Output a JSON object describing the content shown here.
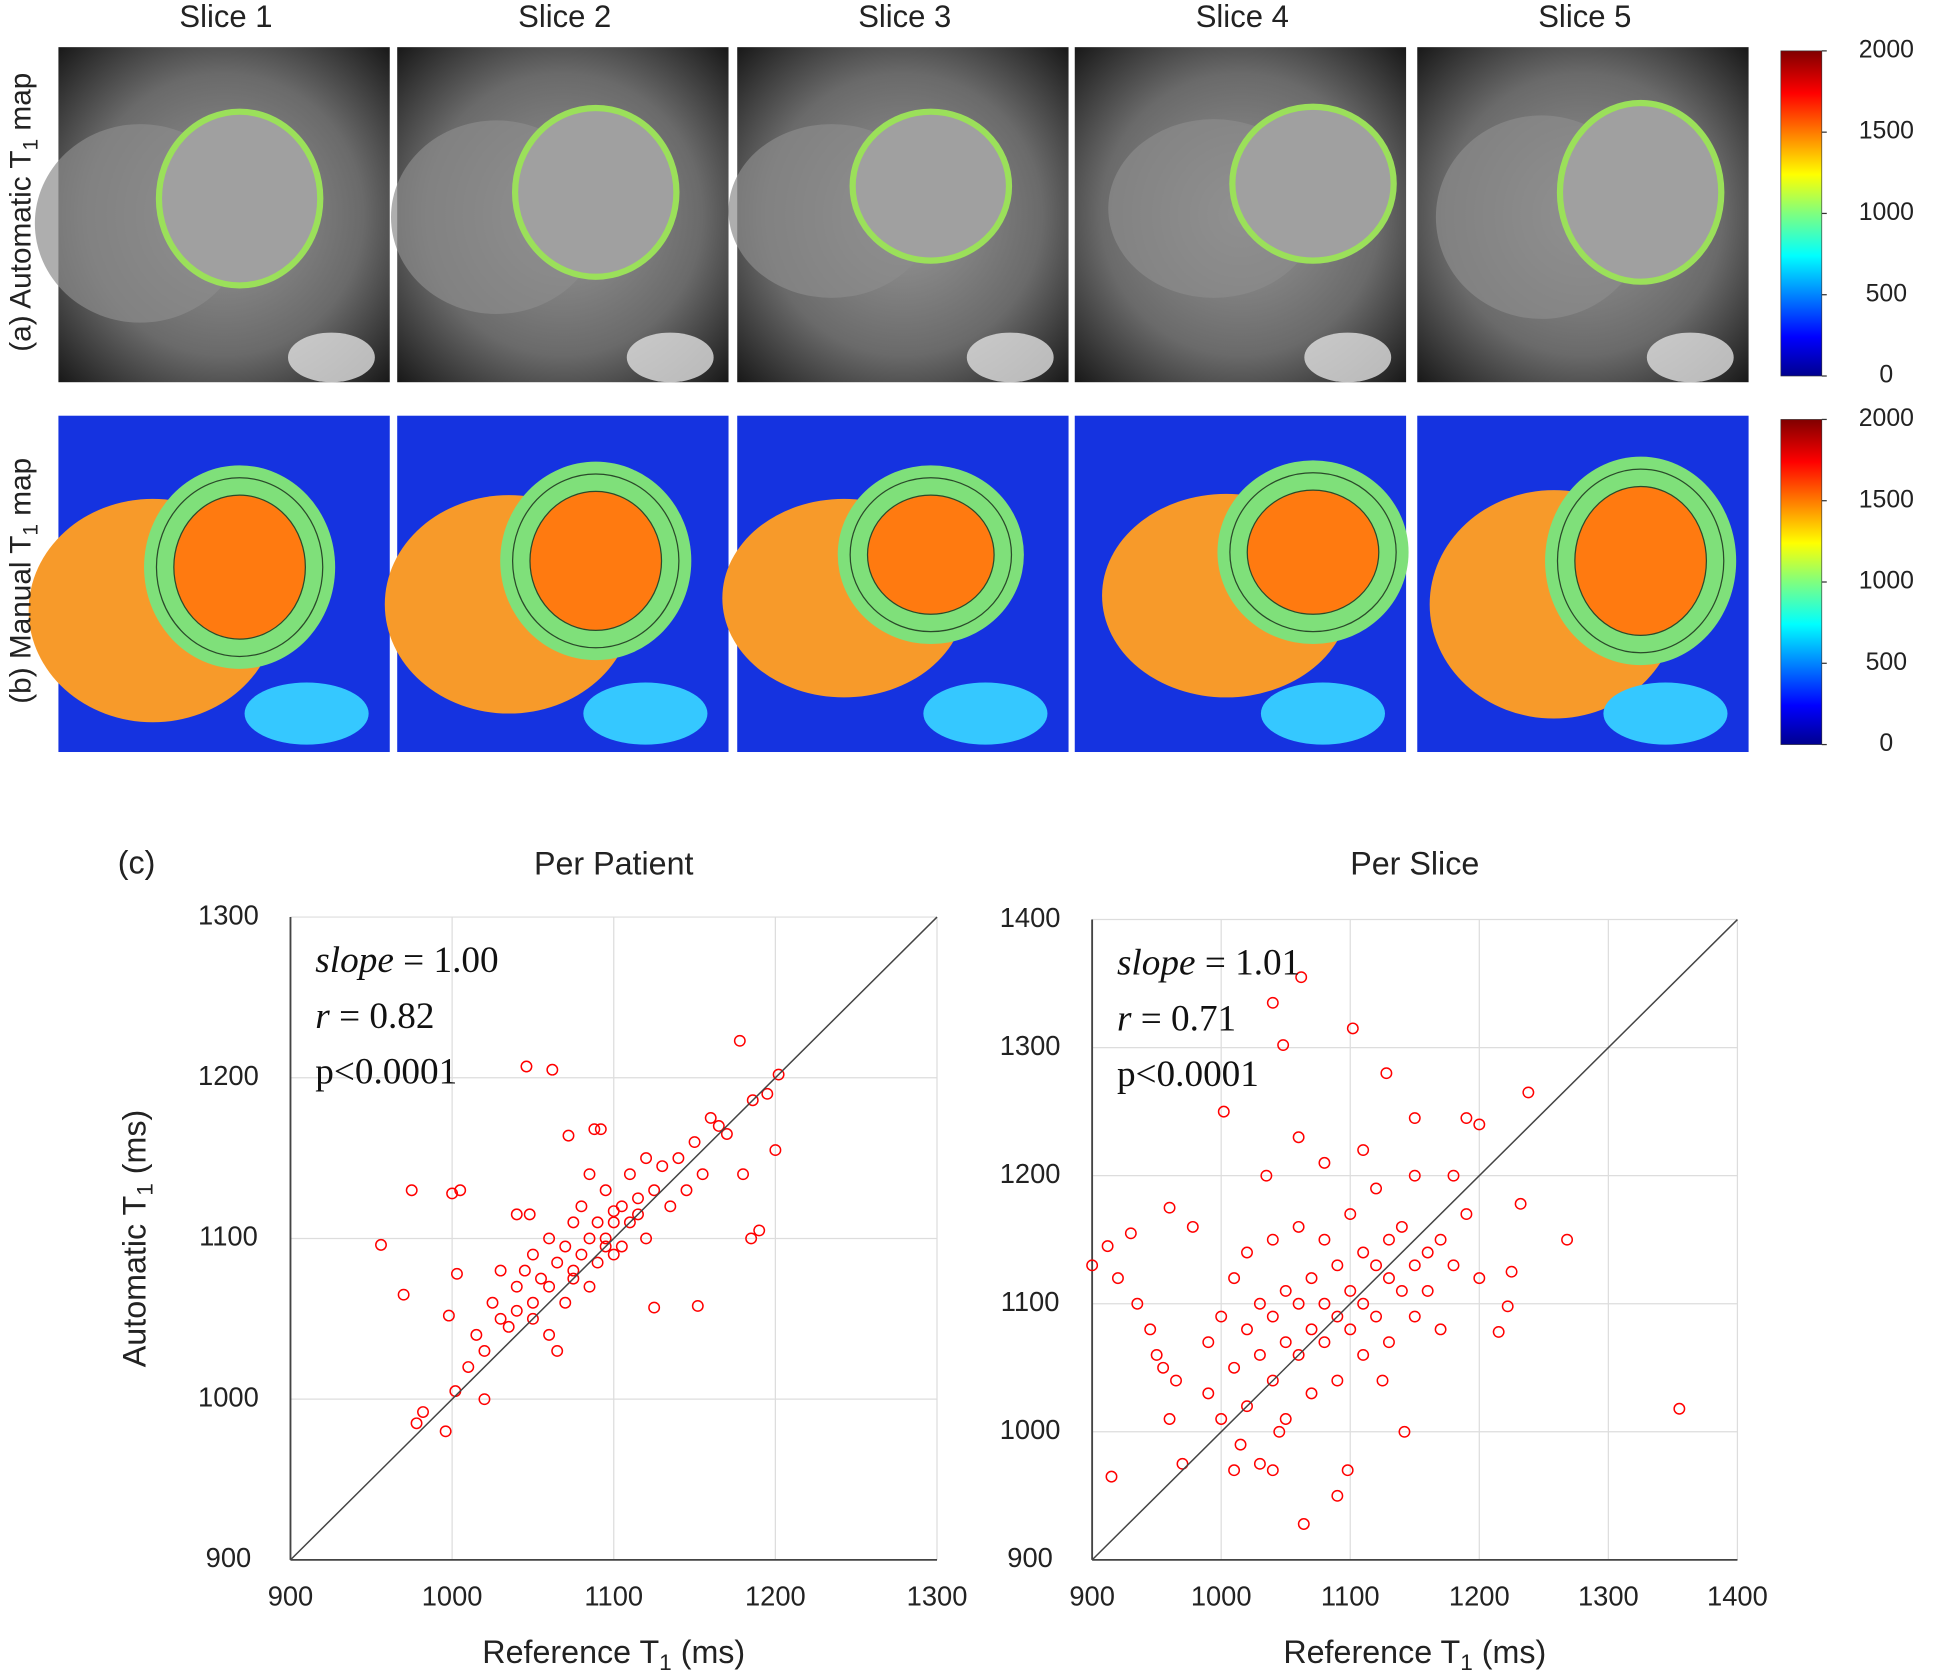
{
  "image_grid": {
    "columns": [
      "Slice 1",
      "Slice 2",
      "Slice 3",
      "Slice 4",
      "Slice 5"
    ],
    "rows": [
      {
        "label": {
          "prefix": "(a) Automatic T",
          "subscript": "1",
          "suffix": " map"
        },
        "colorbar": {
          "ylim": [
            0,
            2000
          ],
          "yticks": [
            0,
            500,
            1000,
            1500,
            2000
          ],
          "colormap": "jet"
        }
      },
      {
        "label": {
          "prefix": "(b) Manual T",
          "subscript": "1",
          "suffix": " map"
        },
        "colorbar": {
          "ylim": [
            0,
            2000
          ],
          "yticks": [
            0,
            500,
            1000,
            1500,
            2000
          ],
          "colormap": "jet"
        }
      }
    ]
  },
  "panel_label": "(c)",
  "chart_data": [
    {
      "type": "scatter",
      "title": "Per Patient",
      "x_label": {
        "prefix": "Reference T",
        "subscript": "1",
        "suffix": " (ms)"
      },
      "y_label": {
        "prefix": "Automatic T",
        "subscript": "1",
        "suffix": " (ms)"
      },
      "xlim": [
        900,
        1300
      ],
      "ylim": [
        900,
        1300
      ],
      "xticks": [
        900,
        1000,
        1100,
        1200,
        1300
      ],
      "yticks": [
        900,
        1000,
        1100,
        1200,
        1300
      ],
      "grid": true,
      "identity_line": true,
      "annotations": [
        {
          "italic": "slope",
          "text": " = 1.00"
        },
        {
          "italic": "r",
          "text": " = 0.82"
        },
        {
          "text": "p<0.0001"
        }
      ],
      "series": [
        {
          "color": "#ff0000",
          "x": [
            956,
            970,
            975,
            978,
            982,
            996,
            998,
            1000,
            1005,
            1002,
            1003,
            1046,
            1062,
            1072,
            1088,
            1092,
            1152,
            1178,
            1186,
            1200,
            1202,
            1195,
            1180,
            1185,
            1190,
            1125,
            1100,
            1010,
            1015,
            1020,
            1025,
            1030,
            1035,
            1040,
            1040,
            1045,
            1050,
            1050,
            1055,
            1060,
            1060,
            1065,
            1070,
            1070,
            1075,
            1075,
            1080,
            1080,
            1085,
            1085,
            1090,
            1090,
            1095,
            1095,
            1100,
            1100,
            1105,
            1105,
            1110,
            1110,
            1115,
            1120,
            1120,
            1125,
            1130,
            1135,
            1140,
            1145,
            1150,
            1155,
            1160,
            1165,
            1170,
            1048,
            1040,
            1060,
            1065,
            1085,
            1030,
            1020,
            1050,
            1075,
            1095,
            1115
          ],
          "values": [
            1096,
            1065,
            1130,
            985,
            992,
            980,
            1052,
            1128,
            1130,
            1005,
            1078,
            1207,
            1205,
            1164,
            1168,
            1168,
            1058,
            1223,
            1186,
            1155,
            1202,
            1190,
            1140,
            1100,
            1105,
            1057,
            1117,
            1020,
            1040,
            1030,
            1060,
            1050,
            1045,
            1070,
            1055,
            1080,
            1060,
            1090,
            1075,
            1100,
            1070,
            1085,
            1095,
            1060,
            1110,
            1080,
            1090,
            1120,
            1100,
            1070,
            1110,
            1085,
            1130,
            1100,
            1090,
            1110,
            1120,
            1095,
            1140,
            1110,
            1125,
            1100,
            1150,
            1130,
            1145,
            1120,
            1150,
            1130,
            1160,
            1140,
            1175,
            1170,
            1165,
            1115,
            1115,
            1040,
            1030,
            1140,
            1080,
            1000,
            1050,
            1075,
            1095,
            1115
          ]
        }
      ]
    },
    {
      "type": "scatter",
      "title": "Per Slice",
      "x_label": {
        "prefix": "Reference T",
        "subscript": "1",
        "suffix": " (ms)"
      },
      "xlim": [
        900,
        1400
      ],
      "ylim": [
        900,
        1400
      ],
      "xticks": [
        900,
        1000,
        1100,
        1200,
        1300,
        1400
      ],
      "yticks": [
        900,
        1000,
        1100,
        1200,
        1300,
        1400
      ],
      "grid": true,
      "identity_line": true,
      "annotations": [
        {
          "italic": "slope",
          "text": " = 1.01"
        },
        {
          "italic": "r",
          "text": " = 0.71"
        },
        {
          "text": "p<0.0001"
        }
      ],
      "series": [
        {
          "color": "#ff0000",
          "x": [
            900,
            912,
            915,
            930,
            935,
            920,
            945,
            960,
            960,
            978,
            1002,
            1040,
            1062,
            1048,
            1102,
            1128,
            1142,
            1098,
            1064,
            1090,
            1238,
            1268,
            1355,
            1215,
            1225,
            1232,
            1222,
            1010,
            1030,
            1040,
            970,
            965,
            955,
            950,
            1200,
            1190,
            1150,
            1180,
            990,
            990,
            1000,
            1000,
            1010,
            1010,
            1020,
            1020,
            1020,
            1030,
            1030,
            1040,
            1040,
            1040,
            1050,
            1050,
            1050,
            1060,
            1060,
            1060,
            1070,
            1070,
            1070,
            1080,
            1080,
            1080,
            1090,
            1090,
            1090,
            1100,
            1100,
            1100,
            1110,
            1110,
            1110,
            1120,
            1120,
            1120,
            1130,
            1130,
            1130,
            1140,
            1140,
            1150,
            1150,
            1150,
            1160,
            1160,
            1170,
            1170,
            1180,
            1190,
            1200,
            1035,
            1060,
            1080,
            1110,
            1015,
            1045,
            1125
          ],
          "values": [
            1130,
            1145,
            965,
            1155,
            1100,
            1120,
            1080,
            1175,
            1010,
            1160,
            1250,
            1335,
            1355,
            1302,
            1315,
            1280,
            1000,
            970,
            928,
            950,
            1265,
            1150,
            1018,
            1078,
            1125,
            1178,
            1098,
            970,
            975,
            970,
            975,
            1040,
            1050,
            1060,
            1240,
            1245,
            1245,
            1200,
            1030,
            1070,
            1010,
            1090,
            1050,
            1120,
            1020,
            1080,
            1140,
            1060,
            1100,
            1040,
            1090,
            1150,
            1070,
            1110,
            1010,
            1060,
            1100,
            1160,
            1080,
            1120,
            1030,
            1070,
            1100,
            1150,
            1090,
            1130,
            1040,
            1080,
            1110,
            1170,
            1100,
            1140,
            1060,
            1090,
            1130,
            1190,
            1120,
            1150,
            1070,
            1110,
            1160,
            1130,
            1090,
            1200,
            1140,
            1110,
            1150,
            1080,
            1130,
            1170,
            1120,
            1200,
            1230,
            1210,
            1220,
            990,
            1000,
            1040
          ]
        }
      ]
    }
  ]
}
